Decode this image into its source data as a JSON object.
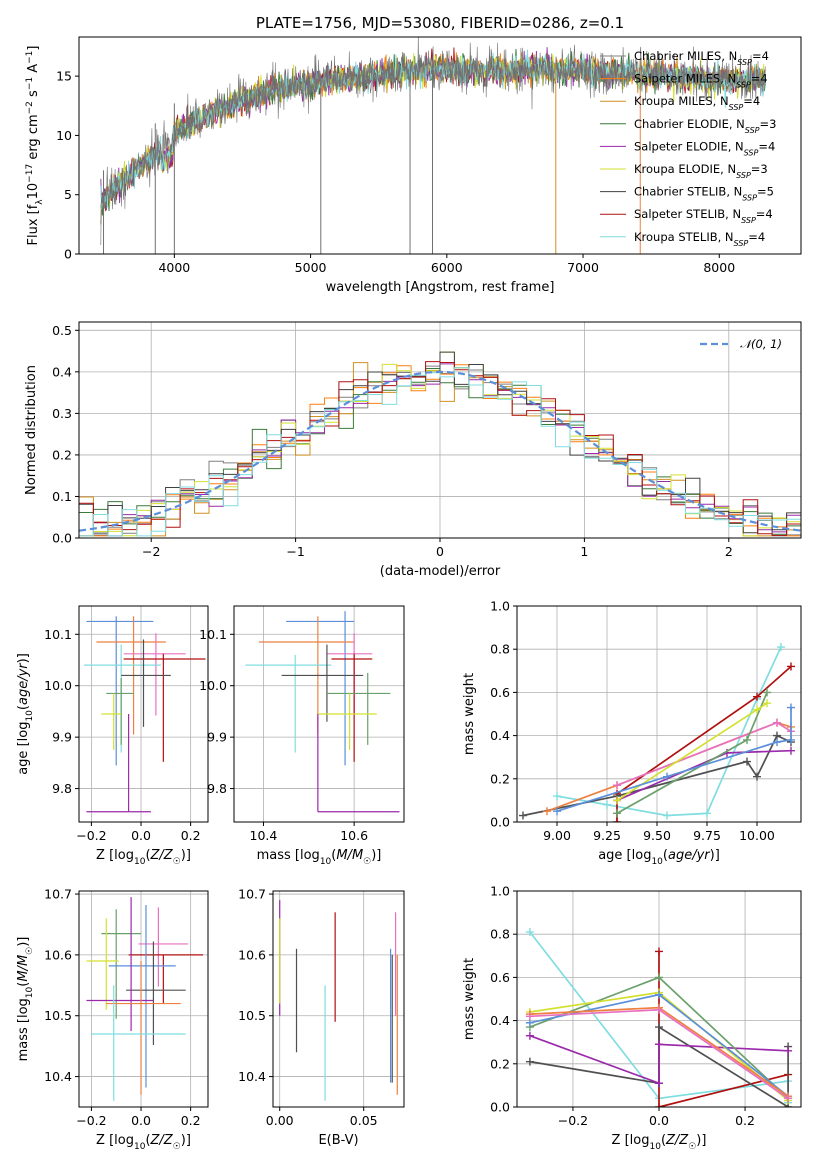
{
  "title": "PLATE=1756, MJD=53080, FIBERID=0286, z=0.1",
  "colors": {
    "Chabrier MILES": "#808080",
    "Salpeter MILES": "#ff7f0e",
    "Kroupa MILES": "#d09020",
    "Chabrier ELODIE": "#3a7a3a",
    "Salpeter ELODIE": "#9a2aaa",
    "Kroupa ELODIE": "#d4e030",
    "Chabrier STELIB": "#404040",
    "Salpeter STELIB": "#b01010",
    "Kroupa STELIB": "#80dde0",
    "blue": "#5b8fd9",
    "pink": "#e870c0",
    "green2": "#6aa06a",
    "orange2": "#ee8040",
    "darkgray": "#505050"
  },
  "chart_data": [
    {
      "id": "spectrum",
      "type": "line",
      "title": "PLATE=1756, MJD=53080, FIBERID=0286, z=0.1",
      "xlabel": "wavelength [Angstrom, rest frame]",
      "ylabel": "Flux [f_λ 10^-17 erg cm^-2 s^-1 A^-1]",
      "xlim": [
        3300,
        8600
      ],
      "ylim": [
        0,
        18.3
      ],
      "xticks": [
        4000,
        5000,
        6000,
        7000,
        8000
      ],
      "yticks": [
        0,
        5,
        10,
        15
      ],
      "legend": [
        "Chabrier MILES, N_SSP=4",
        "Salpeter MILES, N_SSP=4",
        "Kroupa MILES, N_SSP=4",
        "Chabrier ELODIE, N_SSP=3",
        "Salpeter ELODIE, N_SSP=4",
        "Kroupa ELODIE, N_SSP=3",
        "Chabrier STELIB, N_SSP=5",
        "Salpeter STELIB, N_SSP=4",
        "Kroupa STELIB, N_SSP=4"
      ],
      "legend_names": [
        "Chabrier MILES",
        "Salpeter MILES",
        "Kroupa MILES",
        "Chabrier ELODIE",
        "Salpeter ELODIE",
        "Kroupa ELODIE",
        "Chabrier STELIB",
        "Salpeter STELIB",
        "Kroupa STELIB"
      ],
      "legend_placement": "upper-right",
      "continuum": {
        "x": [
          3450,
          3600,
          3800,
          4000,
          4300,
          4700,
          5100,
          5500,
          5900,
          6300,
          6700,
          7100,
          7500,
          7900,
          8350
        ],
        "y": [
          4.2,
          6.0,
          7.8,
          10.2,
          12.0,
          13.8,
          14.6,
          15.1,
          15.5,
          15.5,
          15.6,
          15.4,
          15.1,
          14.8,
          14.6
        ]
      },
      "spikes": [
        3480,
        3860,
        4000,
        5075,
        5730,
        5895,
        6800,
        7420
      ]
    },
    {
      "id": "residuals",
      "type": "step-histogram",
      "xlabel": "(data-model)/error",
      "ylabel": "Normed distribution",
      "xlim": [
        -2.5,
        2.5
      ],
      "ylim": [
        0,
        0.52
      ],
      "xticks": [
        -2,
        -1,
        0,
        1,
        2
      ],
      "yticks": [
        0.0,
        0.1,
        0.2,
        0.3,
        0.4,
        0.5
      ],
      "grid": true,
      "legend": [
        "𝒩(0, 1)"
      ],
      "legend_placement": "upper-right",
      "bins": 50,
      "envelope_center": 0.0,
      "envelope_peak": 0.4,
      "envelope_sigma": 1.0
    },
    {
      "id": "age-vs-Z",
      "type": "errorbar",
      "xlabel": "Z [log10(Z/Z☉)]",
      "ylabel": "age  [log10(age/yr)]",
      "xlim": [
        -0.25,
        0.27
      ],
      "ylim": [
        9.735,
        10.155
      ],
      "xticks": [
        -0.2,
        0.0,
        0.2
      ],
      "yticks": [
        9.8,
        9.9,
        10.0,
        10.1
      ],
      "grid": true,
      "points": [
        {
          "x": -0.1,
          "y": 10.125,
          "xerr": [
            0.12,
            0.15
          ],
          "yerr": [
            0.28,
            0.01
          ],
          "c": "blue"
        },
        {
          "x": -0.03,
          "y": 10.085,
          "xerr": [
            0.15,
            0.13
          ],
          "yerr": [
            0.18,
            0.05
          ],
          "c": "orange2"
        },
        {
          "x": 0.06,
          "y": 10.062,
          "xerr": [
            0.13,
            0.12
          ],
          "yerr": [
            0.12,
            0.04
          ],
          "c": "pink"
        },
        {
          "x": 0.09,
          "y": 10.052,
          "xerr": [
            0.16,
            0.17
          ],
          "yerr": [
            0.2,
            0.01
          ],
          "c": "Salpeter STELIB"
        },
        {
          "x": -0.08,
          "y": 10.04,
          "xerr": [
            0.15,
            0.16
          ],
          "yerr": [
            0.17,
            0.04
          ],
          "c": "Kroupa STELIB"
        },
        {
          "x": 0.01,
          "y": 10.02,
          "xerr": [
            0.09,
            0.11
          ],
          "yerr": [
            0.1,
            0.07
          ],
          "c": "darkgray"
        },
        {
          "x": -0.08,
          "y": 9.985,
          "xerr": [
            0.06,
            0.05
          ],
          "yerr": [
            0.1,
            0.03
          ],
          "c": "green2"
        },
        {
          "x": -0.11,
          "y": 9.945,
          "xerr": [
            0.05,
            0.03
          ],
          "yerr": [
            0.07,
            0.04
          ],
          "c": "Kroupa ELODIE"
        },
        {
          "x": -0.05,
          "y": 9.755,
          "xerr": [
            0.17,
            0.09
          ],
          "yerr": [
            0.0,
            0.19
          ],
          "c": "Salpeter ELODIE"
        }
      ]
    },
    {
      "id": "age-vs-mass",
      "type": "errorbar",
      "xlabel": "mass [log10(M/M☉)]",
      "ylabel": "",
      "xlim": [
        10.335,
        10.71
      ],
      "ylim": [
        9.735,
        10.155
      ],
      "xticks": [
        10.4,
        10.6
      ],
      "yticks": [
        9.8,
        9.9,
        10.0,
        10.1
      ],
      "grid": true,
      "points": [
        {
          "x": 10.58,
          "y": 10.125,
          "xerr": [
            0.13,
            0.02
          ],
          "yerr": [
            0.28,
            0.02
          ],
          "c": "blue"
        },
        {
          "x": 10.52,
          "y": 10.085,
          "xerr": [
            0.13,
            0.08
          ],
          "yerr": [
            0.18,
            0.05
          ],
          "c": "orange2"
        },
        {
          "x": 10.6,
          "y": 10.062,
          "xerr": [
            0.06,
            0.04
          ],
          "yerr": [
            0.12,
            0.04
          ],
          "c": "pink"
        },
        {
          "x": 10.6,
          "y": 10.052,
          "xerr": [
            0.05,
            0.04
          ],
          "yerr": [
            0.2,
            0.01
          ],
          "c": "Salpeter STELIB"
        },
        {
          "x": 10.47,
          "y": 10.04,
          "xerr": [
            0.11,
            0.08
          ],
          "yerr": [
            0.17,
            0.02
          ],
          "c": "Kroupa STELIB"
        },
        {
          "x": 10.54,
          "y": 10.02,
          "xerr": [
            0.1,
            0.08
          ],
          "yerr": [
            0.09,
            0.06
          ],
          "c": "darkgray"
        },
        {
          "x": 10.63,
          "y": 9.985,
          "xerr": [
            0.09,
            0.05
          ],
          "yerr": [
            0.1,
            0.04
          ],
          "c": "green2"
        },
        {
          "x": 10.59,
          "y": 9.945,
          "xerr": [
            0.07,
            0.06
          ],
          "yerr": [
            0.07,
            0.04
          ],
          "c": "Kroupa ELODIE"
        },
        {
          "x": 10.52,
          "y": 9.755,
          "xerr": [
            0.0,
            0.18
          ],
          "yerr": [
            0.0,
            0.19
          ],
          "c": "Salpeter ELODIE"
        }
      ]
    },
    {
      "id": "weight-vs-age",
      "type": "line",
      "xlabel": "age  [log10(age/yr)]",
      "ylabel": "mass weight",
      "xlim": [
        8.8,
        10.22
      ],
      "ylim": [
        0,
        1.0
      ],
      "xticks": [
        9.0,
        9.25,
        9.5,
        9.75,
        10.0
      ],
      "yticks": [
        0.0,
        0.2,
        0.4,
        0.6,
        0.8,
        1.0
      ],
      "grid": true,
      "series": [
        {
          "c": "Kroupa STELIB",
          "x": [
            9.0,
            9.25,
            9.55,
            9.75,
            10.0,
            10.12
          ],
          "y": [
            0.12,
            0.08,
            0.03,
            0.04,
            0.57,
            0.81
          ]
        },
        {
          "c": "Salpeter STELIB",
          "x": [
            9.3,
            9.3,
            10.0,
            10.17
          ],
          "y": [
            0.0,
            0.13,
            0.58,
            0.72
          ]
        },
        {
          "c": "darkgray",
          "x": [
            8.83,
            9.3,
            9.95,
            10.0,
            10.1,
            10.17
          ],
          "y": [
            0.03,
            0.12,
            0.28,
            0.21,
            0.4,
            0.37
          ]
        },
        {
          "c": "orange2",
          "x": [
            8.95,
            9.3,
            10.1,
            10.17
          ],
          "y": [
            0.05,
            0.17,
            0.46,
            0.44
          ]
        },
        {
          "c": "pink",
          "x": [
            9.3,
            10.1,
            10.17
          ],
          "y": [
            0.17,
            0.46,
            0.42
          ]
        },
        {
          "c": "Salpeter ELODIE",
          "x": [
            9.3,
            9.85,
            10.17
          ],
          "y": [
            0.1,
            0.32,
            0.33
          ]
        },
        {
          "c": "green2",
          "x": [
            9.3,
            9.95,
            10.05
          ],
          "y": [
            0.04,
            0.38,
            0.6
          ]
        },
        {
          "c": "Kroupa ELODIE",
          "x": [
            9.3,
            10.0,
            10.05
          ],
          "y": [
            0.1,
            0.52,
            0.55
          ]
        },
        {
          "c": "blue",
          "x": [
            9.0,
            9.55,
            10.1,
            10.17,
            10.17
          ],
          "y": [
            0.05,
            0.21,
            0.37,
            0.38,
            0.53
          ]
        }
      ]
    },
    {
      "id": "mass-vs-Z",
      "type": "errorbar",
      "xlabel": "Z [log10(Z/Z☉)]",
      "ylabel": "mass [log10(M/M☉)]",
      "xlim": [
        -0.25,
        0.27
      ],
      "ylim": [
        10.35,
        10.705
      ],
      "xticks": [
        -0.2,
        0.0,
        0.2
      ],
      "yticks": [
        10.4,
        10.5,
        10.6,
        10.7
      ],
      "grid": true,
      "points": [
        {
          "x": -0.1,
          "y": 10.635,
          "xerr": [
            0.06,
            0.1
          ],
          "yerr": [
            0.14,
            0.04
          ],
          "c": "green2"
        },
        {
          "x": 0.07,
          "y": 10.618,
          "xerr": [
            0.08,
            0.12
          ],
          "yerr": [
            0.07,
            0.06
          ],
          "c": "pink"
        },
        {
          "x": 0.09,
          "y": 10.6,
          "xerr": [
            0.14,
            0.16
          ],
          "yerr": [
            0.08,
            0.0
          ],
          "c": "Salpeter STELIB"
        },
        {
          "x": -0.14,
          "y": 10.59,
          "xerr": [
            0.08,
            0.05
          ],
          "yerr": [
            0.08,
            0.07
          ],
          "c": "Kroupa ELODIE"
        },
        {
          "x": 0.02,
          "y": 10.582,
          "xerr": [
            0.15,
            0.12
          ],
          "yerr": [
            0.2,
            0.1
          ],
          "c": "blue"
        },
        {
          "x": 0.05,
          "y": 10.542,
          "xerr": [
            0.11,
            0.13
          ],
          "yerr": [
            0.09,
            0.08
          ],
          "c": "darkgray"
        },
        {
          "x": -0.04,
          "y": 10.525,
          "xerr": [
            0.18,
            0.09
          ],
          "yerr": [
            0.05,
            0.17
          ],
          "c": "Salpeter ELODIE"
        },
        {
          "x": 0.0,
          "y": 10.52,
          "xerr": [
            0.14,
            0.16
          ],
          "yerr": [
            0.15,
            0.07
          ],
          "c": "orange2"
        },
        {
          "x": -0.11,
          "y": 10.47,
          "xerr": [
            0.09,
            0.29
          ],
          "yerr": [
            0.11,
            0.08
          ],
          "c": "Kroupa STELIB"
        }
      ]
    },
    {
      "id": "mass-vs-EBV",
      "type": "errorbar",
      "xlabel": "E(B-V)",
      "ylabel": "",
      "xlim": [
        -0.004,
        0.074
      ],
      "ylim": [
        10.35,
        10.705
      ],
      "xticks": [
        0.0,
        0.05
      ],
      "yticks": [
        10.4,
        10.5,
        10.6,
        10.7
      ],
      "grid": true,
      "points": [
        {
          "x": 0.0,
          "y": 10.6,
          "lo": 10.5,
          "hi": 10.69,
          "c": "Salpeter ELODIE"
        },
        {
          "x": 0.0,
          "y": 10.6,
          "lo": 10.52,
          "hi": 10.66,
          "c": "Kroupa ELODIE"
        },
        {
          "x": 0.01,
          "y": 10.54,
          "lo": 10.44,
          "hi": 10.61,
          "c": "darkgray"
        },
        {
          "x": 0.027,
          "y": 10.47,
          "lo": 10.36,
          "hi": 10.55,
          "c": "Kroupa STELIB"
        },
        {
          "x": 0.033,
          "y": 10.6,
          "lo": 10.49,
          "hi": 10.67,
          "c": "Salpeter STELIB"
        },
        {
          "x": 0.066,
          "y": 10.58,
          "lo": 10.39,
          "hi": 10.61,
          "c": "blue"
        },
        {
          "x": 0.067,
          "y": 10.52,
          "lo": 10.39,
          "hi": 10.6,
          "c": "darkgray"
        },
        {
          "x": 0.069,
          "y": 10.6,
          "lo": 10.5,
          "hi": 10.67,
          "c": "pink"
        },
        {
          "x": 0.07,
          "y": 10.52,
          "lo": 10.37,
          "hi": 10.6,
          "c": "orange2"
        }
      ]
    },
    {
      "id": "weight-vs-Z",
      "type": "line",
      "xlabel": "Z [log10(Z/Z☉)]",
      "ylabel": "mass weight",
      "xlim": [
        -0.33,
        0.33
      ],
      "ylim": [
        0,
        1.0
      ],
      "xticks": [
        -0.2,
        0.0,
        0.2
      ],
      "yticks": [
        0.0,
        0.2,
        0.4,
        0.6,
        0.8,
        1.0
      ],
      "grid": true,
      "series": [
        {
          "c": "Kroupa STELIB",
          "x": [
            -0.3,
            0.0,
            0.3,
            0.3
          ],
          "y": [
            0.81,
            0.04,
            0.12,
            0.02
          ]
        },
        {
          "c": "Salpeter STELIB",
          "x": [
            0.0,
            0.0,
            0.0,
            0.3
          ],
          "y": [
            0.72,
            0.29,
            0.0,
            0.15
          ]
        },
        {
          "c": "darkgray",
          "x": [
            -0.3,
            0.0,
            0.0,
            0.3,
            0.3
          ],
          "y": [
            0.21,
            0.11,
            0.37,
            0.0,
            0.28
          ]
        },
        {
          "c": "Salpeter ELODIE",
          "x": [
            -0.3,
            0.0,
            0.0,
            0.3
          ],
          "y": [
            0.33,
            0.11,
            0.29,
            0.26
          ]
        },
        {
          "c": "green2",
          "x": [
            -0.3,
            0.0,
            0.3
          ],
          "y": [
            0.37,
            0.6,
            0.04
          ]
        },
        {
          "c": "Kroupa ELODIE",
          "x": [
            -0.3,
            0.0,
            0.3
          ],
          "y": [
            0.44,
            0.53,
            0.03
          ]
        },
        {
          "c": "blue",
          "x": [
            -0.3,
            0.0,
            0.3
          ],
          "y": [
            0.39,
            0.52,
            0.05
          ]
        },
        {
          "c": "orange2",
          "x": [
            -0.3,
            0.0,
            0.3
          ],
          "y": [
            0.43,
            0.46,
            0.05
          ]
        },
        {
          "c": "pink",
          "x": [
            -0.3,
            0.0,
            0.3
          ],
          "y": [
            0.42,
            0.45,
            0.04
          ]
        }
      ]
    }
  ]
}
